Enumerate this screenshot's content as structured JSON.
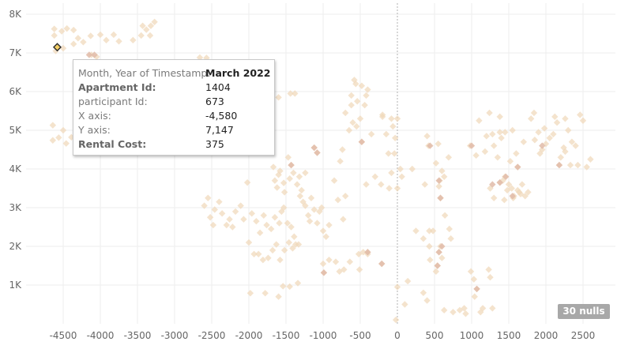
{
  "chart_data": {
    "type": "scatter",
    "x_ticks": [
      "-4500",
      "-4000",
      "-3500",
      "-3000",
      "-2500",
      "-2000",
      "-1500",
      "-1000",
      "-500",
      "0",
      "500",
      "1000",
      "1500",
      "2000",
      "2500"
    ],
    "y_ticks": [
      "1K",
      "2K",
      "3K",
      "4K",
      "5K",
      "6K",
      "7K",
      "8K"
    ],
    "xlim": [
      -4900,
      2800
    ],
    "ylim": [
      0,
      8300
    ],
    "grid": true,
    "points": [
      [
        -4620,
        7620
      ],
      [
        -4620,
        7450
      ],
      [
        -4520,
        7560
      ],
      [
        -4450,
        7630
      ],
      [
        -4360,
        7590
      ],
      [
        -4300,
        7380
      ],
      [
        -4230,
        7280
      ],
      [
        -4130,
        7440
      ],
      [
        -4000,
        7470
      ],
      [
        -3920,
        7330
      ],
      [
        -3820,
        7470
      ],
      [
        -3750,
        7300
      ],
      [
        -3560,
        7330
      ],
      [
        -3450,
        7450
      ],
      [
        -3380,
        7600
      ],
      [
        -3320,
        7700
      ],
      [
        -3270,
        7800
      ],
      [
        -3330,
        7450
      ],
      [
        -3430,
        7700
      ],
      [
        -4360,
        7230
      ],
      [
        -4500,
        7120
      ],
      [
        -4600,
        7050
      ],
      [
        -4120,
        6950
      ],
      [
        -4050,
        6900
      ],
      [
        -4640,
        5130
      ],
      [
        -4640,
        4740
      ],
      [
        -4560,
        4810
      ],
      [
        -4500,
        5000
      ],
      [
        -4460,
        4660
      ],
      [
        -4390,
        4820
      ],
      [
        -4300,
        4700
      ],
      [
        -4220,
        4560
      ],
      [
        -4100,
        4660
      ],
      [
        -3960,
        4620
      ],
      [
        -2660,
        6880
      ],
      [
        -2570,
        6870
      ],
      [
        -2460,
        6700
      ],
      [
        -1700,
        6120
      ],
      [
        -1600,
        5850
      ],
      [
        -1440,
        5950
      ],
      [
        -1380,
        5950
      ],
      [
        -1430,
        4100
      ],
      [
        -1320,
        3800
      ],
      [
        -1240,
        3900
      ],
      [
        -1120,
        4550
      ],
      [
        -1080,
        4420
      ],
      [
        -1670,
        4050
      ],
      [
        -1650,
        3700
      ],
      [
        -1620,
        3520
      ],
      [
        -1600,
        3850
      ],
      [
        -1580,
        3950
      ],
      [
        -1530,
        3640
      ],
      [
        -1520,
        3400
      ],
      [
        -1470,
        4300
      ],
      [
        -1450,
        3750
      ],
      [
        -1400,
        3900
      ],
      [
        -1350,
        3600
      ],
      [
        -1310,
        3300
      ],
      [
        -1290,
        3450
      ],
      [
        -1270,
        3150
      ],
      [
        -1240,
        3050
      ],
      [
        -1200,
        2800
      ],
      [
        -1180,
        2650
      ],
      [
        -1160,
        3250
      ],
      [
        -1120,
        2950
      ],
      [
        -1080,
        2600
      ],
      [
        -1050,
        2900
      ],
      [
        -1020,
        3000
      ],
      [
        -1000,
        2400
      ],
      [
        -960,
        2250
      ],
      [
        -920,
        2550
      ],
      [
        -2600,
        3050
      ],
      [
        -2550,
        3250
      ],
      [
        -2520,
        2750
      ],
      [
        -2480,
        2550
      ],
      [
        -2460,
        2950
      ],
      [
        -2400,
        3150
      ],
      [
        -2360,
        2850
      ],
      [
        -2300,
        2550
      ],
      [
        -2260,
        2700
      ],
      [
        -2220,
        2500
      ],
      [
        -2180,
        2900
      ],
      [
        -2110,
        3050
      ],
      [
        -2070,
        2700
      ],
      [
        -2020,
        3650
      ],
      [
        -1960,
        2850
      ],
      [
        -1900,
        2650
      ],
      [
        -1850,
        2350
      ],
      [
        -1800,
        2800
      ],
      [
        -1760,
        2550
      ],
      [
        -1700,
        2450
      ],
      [
        -1650,
        2750
      ],
      [
        -1590,
        2600
      ],
      [
        -1560,
        2900
      ],
      [
        -1530,
        3000
      ],
      [
        -1480,
        2600
      ],
      [
        -1430,
        2500
      ],
      [
        -1390,
        2250
      ],
      [
        -1330,
        2050
      ],
      [
        -2000,
        2100
      ],
      [
        -1930,
        1800
      ],
      [
        -1870,
        1800
      ],
      [
        -1810,
        1650
      ],
      [
        -1740,
        1700
      ],
      [
        -1680,
        1900
      ],
      [
        -1630,
        2050
      ],
      [
        -1580,
        1650
      ],
      [
        -1520,
        1900
      ],
      [
        -1460,
        2100
      ],
      [
        -1410,
        1950
      ],
      [
        -1370,
        2050
      ],
      [
        -1980,
        790
      ],
      [
        -1780,
        790
      ],
      [
        -1600,
        700
      ],
      [
        -1540,
        970
      ],
      [
        -1450,
        960
      ],
      [
        -1340,
        1050
      ],
      [
        -1000,
        1550
      ],
      [
        -990,
        1320
      ],
      [
        -920,
        1650
      ],
      [
        -830,
        1600
      ],
      [
        -780,
        1350
      ],
      [
        -720,
        1400
      ],
      [
        -640,
        1600
      ],
      [
        -520,
        1800
      ],
      [
        -460,
        1850
      ],
      [
        -400,
        1800
      ],
      [
        -510,
        1400
      ],
      [
        -400,
        1850
      ],
      [
        -210,
        1550
      ],
      [
        -800,
        3200
      ],
      [
        -700,
        3300
      ],
      [
        -730,
        2700
      ],
      [
        -770,
        4200
      ],
      [
        -850,
        3700
      ],
      [
        -740,
        4500
      ],
      [
        -650,
        5000
      ],
      [
        -600,
        5200
      ],
      [
        -550,
        5100
      ],
      [
        -500,
        5300
      ],
      [
        -480,
        4700
      ],
      [
        -350,
        4900
      ],
      [
        -200,
        5400
      ],
      [
        -150,
        4900
      ],
      [
        -120,
        4400
      ],
      [
        -80,
        3900
      ],
      [
        -110,
        3500
      ],
      [
        -220,
        3600
      ],
      [
        -300,
        3800
      ],
      [
        -420,
        3600
      ],
      [
        -700,
        5450
      ],
      [
        -620,
        5650
      ],
      [
        -620,
        5900
      ],
      [
        -580,
        6300
      ],
      [
        -540,
        5750
      ],
      [
        -480,
        6150
      ],
      [
        -420,
        5900
      ],
      [
        -440,
        5650
      ],
      [
        -400,
        6050
      ],
      [
        -560,
        6200
      ],
      [
        -200,
        5350
      ],
      [
        -80,
        5300
      ],
      [
        -60,
        5100
      ],
      [
        0,
        5300
      ],
      [
        -30,
        4800
      ],
      [
        -40,
        4400
      ],
      [
        0,
        3500
      ],
      [
        40,
        4000
      ],
      [
        60,
        3800
      ],
      [
        140,
        1100
      ],
      [
        100,
        500
      ],
      [
        0,
        950
      ],
      [
        -20,
        100
      ],
      [
        200,
        4000
      ],
      [
        250,
        2400
      ],
      [
        350,
        2200
      ],
      [
        370,
        3600
      ],
      [
        400,
        4850
      ],
      [
        420,
        4600
      ],
      [
        430,
        2000
      ],
      [
        440,
        1650
      ],
      [
        430,
        2400
      ],
      [
        480,
        2400
      ],
      [
        520,
        4150
      ],
      [
        550,
        4650
      ],
      [
        560,
        3550
      ],
      [
        570,
        3700
      ],
      [
        580,
        3250
      ],
      [
        600,
        3950
      ],
      [
        630,
        3800
      ],
      [
        640,
        2800
      ],
      [
        690,
        4300
      ],
      [
        700,
        2450
      ],
      [
        720,
        2200
      ],
      [
        600,
        1700
      ],
      [
        580,
        2000
      ],
      [
        540,
        1500
      ],
      [
        560,
        1850
      ],
      [
        520,
        1350
      ],
      [
        350,
        800
      ],
      [
        400,
        600
      ],
      [
        630,
        350
      ],
      [
        750,
        300
      ],
      [
        840,
        350
      ],
      [
        900,
        400
      ],
      [
        920,
        260
      ],
      [
        990,
        1350
      ],
      [
        1030,
        1150
      ],
      [
        1040,
        700
      ],
      [
        1070,
        900
      ],
      [
        1120,
        300
      ],
      [
        1150,
        400
      ],
      [
        1230,
        1400
      ],
      [
        1250,
        1200
      ],
      [
        1280,
        400
      ],
      [
        980,
        4600
      ],
      [
        1060,
        4350
      ],
      [
        1100,
        5250
      ],
      [
        1180,
        4450
      ],
      [
        1200,
        4850
      ],
      [
        1240,
        5450
      ],
      [
        1280,
        4900
      ],
      [
        1300,
        4600
      ],
      [
        1350,
        4300
      ],
      [
        1380,
        4950
      ],
      [
        1400,
        4800
      ],
      [
        1450,
        3800
      ],
      [
        1480,
        3450
      ],
      [
        1520,
        4200
      ],
      [
        1560,
        3250
      ],
      [
        1600,
        4400
      ],
      [
        1640,
        3400
      ],
      [
        1680,
        3600
      ],
      [
        1720,
        3300
      ],
      [
        1760,
        3400
      ],
      [
        1250,
        3500
      ],
      [
        1300,
        3250
      ],
      [
        1380,
        3650
      ],
      [
        1420,
        3700
      ],
      [
        1440,
        3200
      ],
      [
        1500,
        3600
      ],
      [
        1540,
        3500
      ],
      [
        1570,
        3300
      ],
      [
        1620,
        3450
      ],
      [
        1660,
        3350
      ],
      [
        1800,
        5300
      ],
      [
        1840,
        5450
      ],
      [
        1900,
        4950
      ],
      [
        1950,
        4500
      ],
      [
        2000,
        4650
      ],
      [
        2050,
        4800
      ],
      [
        2100,
        4900
      ],
      [
        2120,
        5350
      ],
      [
        2150,
        5200
      ],
      [
        2180,
        4100
      ],
      [
        2200,
        4300
      ],
      [
        2240,
        4550
      ],
      [
        2260,
        4450
      ],
      [
        2300,
        5000
      ],
      [
        2350,
        4700
      ],
      [
        2400,
        4600
      ],
      [
        2430,
        4100
      ],
      [
        2460,
        5400
      ],
      [
        2500,
        5250
      ],
      [
        2550,
        4050
      ],
      [
        2600,
        4250
      ],
      [
        2330,
        4100
      ],
      [
        2260,
        5300
      ],
      [
        1850,
        4750
      ],
      [
        1920,
        4400
      ],
      [
        1980,
        5050
      ],
      [
        1700,
        4700
      ],
      [
        1550,
        5000
      ],
      [
        1450,
        4950
      ],
      [
        1380,
        5350
      ],
      [
        1620,
        4050
      ]
    ],
    "dark_points": [
      [
        -4150,
        6950
      ],
      [
        -4080,
        6950
      ],
      [
        -1430,
        4100
      ],
      [
        -1120,
        4550
      ],
      [
        -1080,
        4420
      ],
      [
        -990,
        1320
      ],
      [
        -210,
        1550
      ],
      [
        -480,
        4700
      ],
      [
        -400,
        1850
      ],
      [
        440,
        4600
      ],
      [
        560,
        3700
      ],
      [
        580,
        3250
      ],
      [
        560,
        1850
      ],
      [
        540,
        1500
      ],
      [
        600,
        2000
      ],
      [
        1000,
        4600
      ],
      [
        1070,
        900
      ],
      [
        1280,
        3600
      ],
      [
        1380,
        3650
      ],
      [
        1460,
        3800
      ],
      [
        1550,
        3300
      ],
      [
        1620,
        4050
      ],
      [
        1950,
        4600
      ],
      [
        2180,
        4100
      ]
    ],
    "highlighted_point": {
      "x": -4580,
      "y": 7147
    }
  },
  "tooltip": {
    "rows": [
      {
        "label": "Month, Year of Timestamp:",
        "value": "March 2022"
      },
      {
        "label": "Apartment Id:",
        "value": "1404"
      },
      {
        "label": "participant Id:",
        "value": "673"
      },
      {
        "label": "X axis:",
        "value": "-4,580"
      },
      {
        "label": "Y axis:",
        "value": "7,147"
      },
      {
        "label": "Rental Cost:",
        "value": "375"
      }
    ]
  },
  "nulls_badge": "30 nulls",
  "colors": {
    "point": "#f0d7b8",
    "point_dark": "#e0bba8",
    "highlight": "#f5d067"
  }
}
